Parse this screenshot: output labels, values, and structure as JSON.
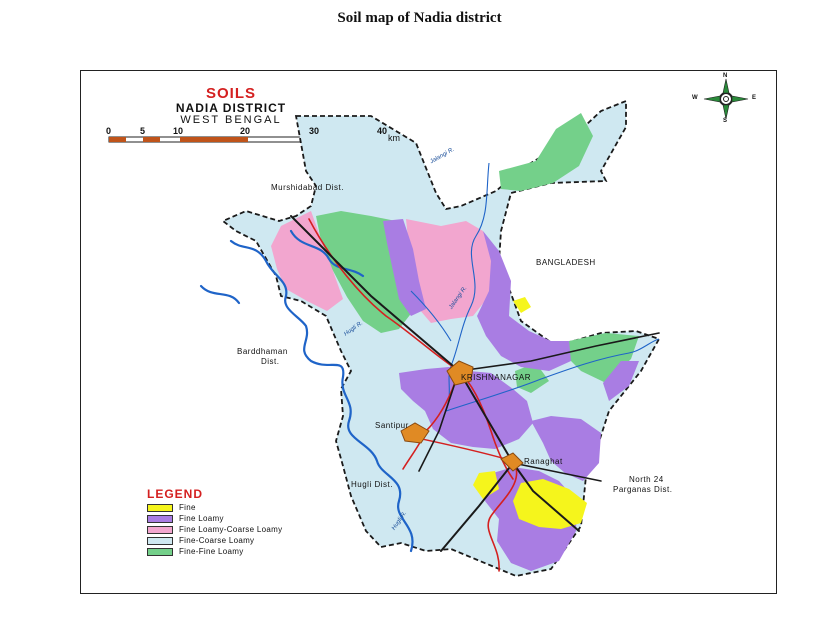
{
  "page": {
    "title": "Soil map of Nadia district"
  },
  "map": {
    "title": "SOILS",
    "subtitle": "NADIA DISTRICT",
    "region": "WEST BENGAL",
    "scale": {
      "ticks": [
        "0",
        "5",
        "10",
        "20",
        "30",
        "40"
      ],
      "unit": "km"
    },
    "compass": {
      "n": "N",
      "s": "S",
      "e": "E",
      "w": "W"
    },
    "places": {
      "murshidabad": "Murshidabad Dist.",
      "bangladesh": "BANGLADESH",
      "barddhaman_1": "Barddhaman",
      "barddhaman_2": "Dist.",
      "krishnanagar": "KRISHNANAGAR",
      "santipur": "Santipur",
      "ranaghat": "Ranaghat",
      "hugli": "Hugli Dist.",
      "north24_1": "North 24",
      "north24_2": "Parganas Dist."
    },
    "rivers": {
      "jalangi_top": "Jalangi R.",
      "jalangi_mid": "Jalangi R.",
      "hugli_top": "Hugli R.",
      "hugli_bottom": "Hugli R."
    },
    "legend": {
      "title": "LEGEND",
      "items": [
        {
          "label": "Fine",
          "color": "#f5f51c"
        },
        {
          "label": "Fine Loamy",
          "color": "#a97de3"
        },
        {
          "label": "Fine Loamy-Coarse Loamy",
          "color": "#f2a6cf"
        },
        {
          "label": "Fine-Coarse Loamy",
          "color": "#cfe8f1"
        },
        {
          "label": "Fine-Fine Loamy",
          "color": "#74d08a"
        }
      ]
    }
  }
}
